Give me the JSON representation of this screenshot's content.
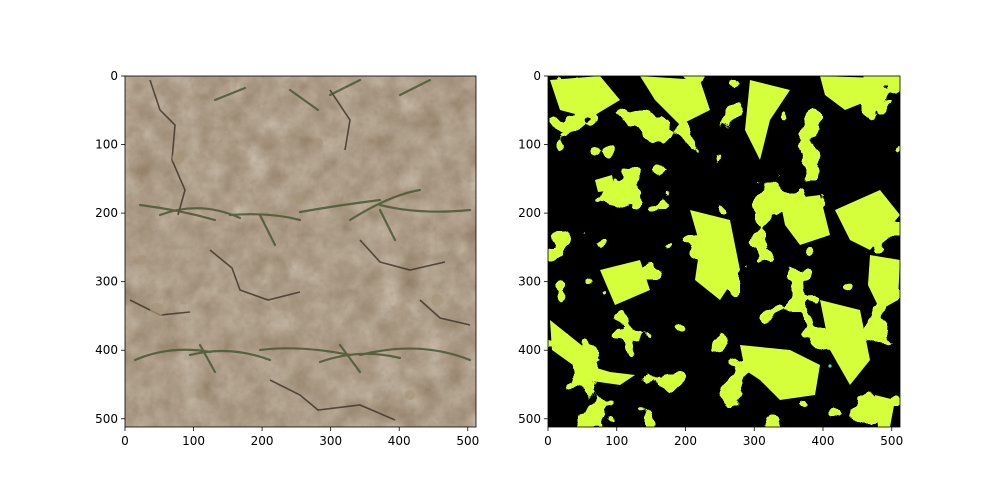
{
  "figure": {
    "background": "#ffffff",
    "panels": [
      {
        "id": "left",
        "content": "soil-photo",
        "x_ticks": [
          "0",
          "100",
          "200",
          "300",
          "400",
          "500"
        ],
        "y_ticks": [
          "0",
          "100",
          "200",
          "300",
          "400",
          "500"
        ],
        "x_range": [
          0,
          512
        ],
        "y_range": [
          0,
          512
        ],
        "soil_color": "#8c7860",
        "plant_color": "#4f5a38"
      },
      {
        "id": "right",
        "content": "segmentation-mask",
        "x_ticks": [
          "0",
          "100",
          "200",
          "300",
          "400",
          "500"
        ],
        "y_ticks": [
          "0",
          "100",
          "200",
          "300",
          "400",
          "500"
        ],
        "x_range": [
          0,
          512
        ],
        "y_range": [
          0,
          512
        ],
        "mask_background": "#000000",
        "mask_foreground": "#d4ff3a"
      }
    ]
  }
}
